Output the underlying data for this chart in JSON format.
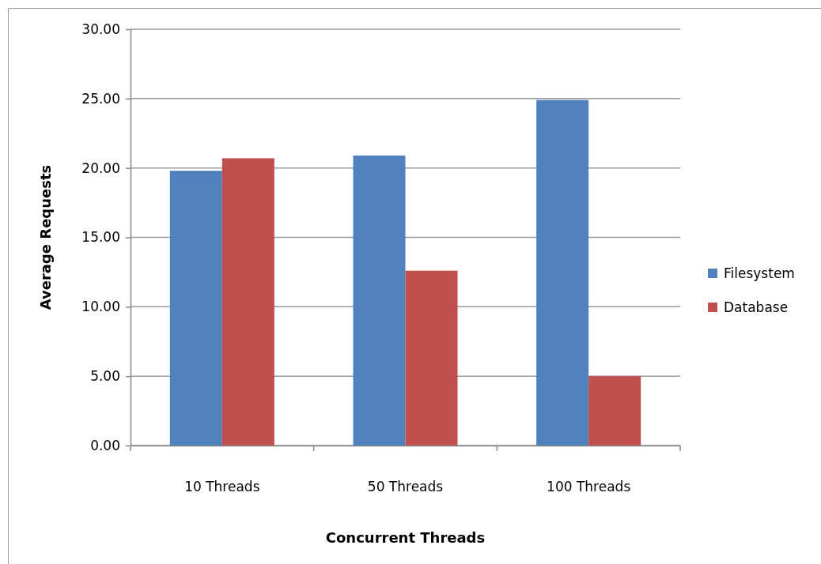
{
  "chart_data": {
    "type": "bar",
    "xlabel": "Concurrent Threads",
    "ylabel": "Average Requests",
    "categories": [
      "10 Threads",
      "50 Threads",
      "100 Threads"
    ],
    "series": [
      {
        "name": "Filesystem",
        "color": "#4f81bd",
        "values": [
          19.8,
          20.9,
          24.9
        ]
      },
      {
        "name": "Database",
        "color": "#c0504d",
        "values": [
          20.7,
          12.6,
          5.0
        ]
      }
    ],
    "ylim": [
      0,
      30
    ],
    "yticks": [
      {
        "value": 0,
        "label": "0.00"
      },
      {
        "value": 5,
        "label": "5.00"
      },
      {
        "value": 10,
        "label": "10.00"
      },
      {
        "value": 15,
        "label": "15.00"
      },
      {
        "value": 20,
        "label": "20.00"
      },
      {
        "value": 25,
        "label": "25.00"
      },
      {
        "value": 30,
        "label": "30.00"
      }
    ],
    "grid": "y",
    "legend": "right"
  }
}
